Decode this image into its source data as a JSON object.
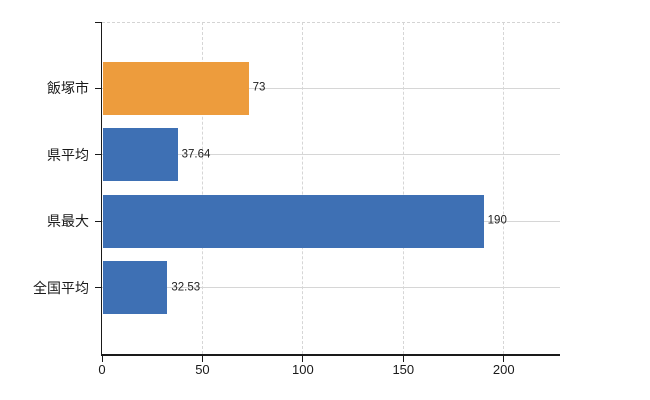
{
  "chart_data": {
    "type": "bar",
    "orientation": "horizontal",
    "title": "",
    "categories": [
      "飯塚市",
      "県平均",
      "県最大",
      "全国平均"
    ],
    "values": [
      73,
      37.64,
      190,
      32.53
    ],
    "value_labels": [
      "73",
      "37.64",
      "190",
      "32.53"
    ],
    "bar_colors": [
      "#ed9c3d",
      "#3e70b4",
      "#3e70b4",
      "#3e70b4"
    ],
    "xlim": [
      0,
      228
    ],
    "xticks": [
      0,
      50,
      100,
      150,
      200
    ],
    "xtick_labels": [
      "0",
      "50",
      "100",
      "150",
      "200"
    ],
    "ylabel": "",
    "xlabel": "",
    "grid": true,
    "legend": "none",
    "highlight_category": "飯塚市",
    "colors": {
      "highlight": "#ed9c3d",
      "default": "#3e70b4",
      "gridline": "#d6d6d6",
      "axis": "#1a1a1a",
      "text": "#1a1a1a",
      "value_text": "#222222",
      "background": "#ffffff"
    }
  }
}
